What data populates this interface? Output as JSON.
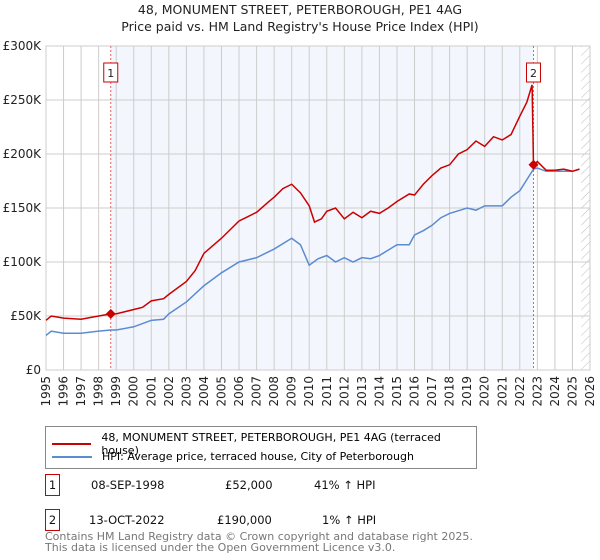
{
  "chart_data": {
    "type": "line",
    "title": "48, MONUMENT STREET, PETERBOROUGH, PE1 4AG",
    "subtitle": "Price paid vs. HM Land Registry's House Price Index (HPI)",
    "xlim": [
      1995,
      2026
    ],
    "ylim": [
      0,
      300000
    ],
    "x_ticks": [
      "1995",
      "1996",
      "1997",
      "1998",
      "1999",
      "2000",
      "2001",
      "2002",
      "2003",
      "2004",
      "2005",
      "2006",
      "2007",
      "2008",
      "2009",
      "2010",
      "2011",
      "2012",
      "2013",
      "2014",
      "2015",
      "2016",
      "2017",
      "2018",
      "2019",
      "2020",
      "2021",
      "2022",
      "2023",
      "2024",
      "2025",
      "2026"
    ],
    "y_ticks": [
      {
        "v": 0,
        "l": "£0"
      },
      {
        "v": 50000,
        "l": "£50K"
      },
      {
        "v": 100000,
        "l": "£100K"
      },
      {
        "v": 150000,
        "l": "£150K"
      },
      {
        "v": 200000,
        "l": "£200K"
      },
      {
        "v": 250000,
        "l": "£250K"
      },
      {
        "v": 300000,
        "l": "£300K"
      }
    ],
    "grid": true,
    "series": [
      {
        "name": "48, MONUMENT STREET, PETERBOROUGH, PE1 4AG (terraced house)",
        "color": "#cc0000",
        "x": [
          1995,
          1995.3,
          1996,
          1997,
          1998,
          1998.69,
          1999,
          2000,
          2000.5,
          2001,
          2001.7,
          2002,
          2003,
          2003.5,
          2004,
          2005,
          2006,
          2006.5,
          2007,
          2007.7,
          2008,
          2008.5,
          2009,
          2009.5,
          2010,
          2010.3,
          2010.7,
          2011,
          2011.5,
          2012,
          2012.5,
          2013,
          2013.5,
          2014,
          2014.5,
          2015,
          2015.7,
          2016,
          2016.5,
          2017,
          2017.5,
          2018,
          2018.5,
          2019,
          2019.5,
          2020,
          2020.5,
          2021,
          2021.5,
          2022,
          2022.4,
          2022.7,
          2022.78,
          2023,
          2023.5,
          2024,
          2024.5,
          2025,
          2025.4
        ],
        "y": [
          46000,
          50000,
          48000,
          47000,
          50000,
          52000,
          52000,
          56000,
          58000,
          64000,
          66000,
          70000,
          82000,
          92000,
          108000,
          122000,
          138000,
          142000,
          146000,
          156000,
          160000,
          168000,
          172000,
          164000,
          152000,
          137000,
          140000,
          147000,
          150000,
          140000,
          146000,
          141000,
          147000,
          145000,
          150000,
          156000,
          163000,
          162000,
          172000,
          180000,
          187000,
          190000,
          200000,
          204000,
          212000,
          207000,
          216000,
          213000,
          218000,
          235000,
          248000,
          264000,
          190000,
          193000,
          185000,
          185000,
          186000,
          184000,
          186000
        ]
      },
      {
        "name": "HPI: Average price, terraced house, City of Peterborough",
        "color": "#5b8bd0",
        "x": [
          1995,
          1995.3,
          1996,
          1997,
          1998,
          1998.69,
          1999,
          2000,
          2001,
          2001.7,
          2002,
          2003,
          2004,
          2005,
          2006,
          2007,
          2008,
          2009,
          2009.5,
          2010,
          2010.5,
          2011,
          2011.5,
          2012,
          2012.5,
          2013,
          2013.5,
          2014,
          2014.5,
          2015,
          2015.7,
          2016,
          2016.5,
          2017,
          2017.5,
          2018,
          2019,
          2019.5,
          2020,
          2021,
          2021.5,
          2022,
          2022.78,
          2023,
          2023.5,
          2024,
          2025,
          2025.4
        ],
        "y": [
          32000,
          36000,
          34000,
          34000,
          36000,
          37000,
          37000,
          40000,
          46000,
          47000,
          52000,
          63000,
          78000,
          90000,
          100000,
          104000,
          112000,
          122000,
          116000,
          97000,
          103000,
          106000,
          100000,
          104000,
          100000,
          104000,
          103000,
          106000,
          111000,
          116000,
          116000,
          125000,
          129000,
          134000,
          141000,
          145000,
          150000,
          148000,
          152000,
          152000,
          160000,
          166000,
          186000,
          187000,
          184000,
          184000,
          184000,
          186000
        ]
      }
    ],
    "sales": [
      {
        "n": "1",
        "x": 1998.69,
        "y": 52000,
        "date": "08-SEP-1998",
        "price": "£52,000",
        "hpi": "41% ↑ HPI"
      },
      {
        "n": "2",
        "x": 2022.78,
        "y": 190000,
        "date": "13-OCT-2022",
        "price": "£190,000",
        "hpi": "1% ↑ HPI"
      }
    ],
    "shaded_range": [
      1998.69,
      2022.78
    ],
    "hatched_from": 2025.5
  },
  "footer": {
    "line1": "Contains HM Land Registry data © Crown copyright and database right 2025.",
    "line2": "This data is licensed under the Open Government Licence v3.0."
  }
}
